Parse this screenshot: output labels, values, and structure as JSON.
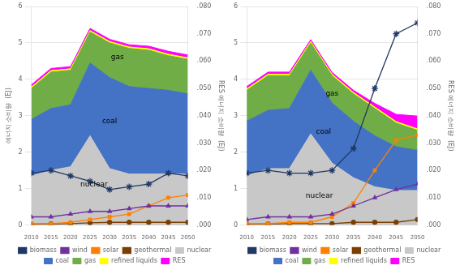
{
  "chart_data": [
    {
      "type": "area",
      "stacked": true,
      "x": [
        2010,
        2015,
        2020,
        2025,
        2030,
        2035,
        2040,
        2045,
        2050
      ],
      "xlim": [
        2010,
        2050
      ],
      "xticks": [
        2010,
        2015,
        2020,
        2025,
        2030,
        2035,
        2040,
        2045,
        2050
      ],
      "ylim": [
        0,
        6
      ],
      "yticks": [
        0,
        1,
        2,
        3,
        4,
        5,
        6
      ],
      "y2lim": [
        0,
        0.08
      ],
      "y2ticks": [
        {
          "value": 0,
          "label": ".000"
        },
        {
          "value": 0.01,
          "label": ".010"
        },
        {
          "value": 0.02,
          "label": ".020"
        },
        {
          "value": 0.03,
          "label": ".030"
        },
        {
          "value": 0.04,
          "label": ".040"
        },
        {
          "value": 0.05,
          "label": ".050"
        },
        {
          "value": 0.06,
          "label": ".060"
        },
        {
          "value": 0.07,
          "label": ".070"
        },
        {
          "value": 0.08,
          "label": ".080"
        }
      ],
      "ylabel": "에너지 소비량  (EJ)",
      "y2label": "RES 에너지 소비량  (EJ)",
      "grid": "y",
      "legend": "bottom",
      "series": [
        {
          "name": "nuclear",
          "type": "area",
          "color": "#c8c8c8",
          "values": [
            1.35,
            1.5,
            1.6,
            2.45,
            1.55,
            1.4,
            1.4,
            1.4,
            1.4
          ]
        },
        {
          "name": "coal",
          "type": "area",
          "color": "#4472c4",
          "values": [
            1.55,
            1.7,
            1.7,
            2.0,
            2.5,
            2.4,
            2.35,
            2.3,
            2.2
          ]
        },
        {
          "name": "gas",
          "type": "area",
          "color": "#70ad47",
          "values": [
            0.85,
            1.0,
            0.95,
            0.85,
            0.95,
            1.05,
            1.05,
            0.95,
            0.95
          ]
        },
        {
          "name": "refined liquids",
          "type": "area",
          "color": "#ffff00",
          "values": [
            0.04,
            0.04,
            0.04,
            0.04,
            0.04,
            0.04,
            0.04,
            0.04,
            0.04
          ]
        },
        {
          "name": "RES",
          "type": "area",
          "color": "#ff00ff",
          "values": [
            0.06,
            0.06,
            0.06,
            0.06,
            0.06,
            0.06,
            0.07,
            0.08,
            0.08
          ]
        },
        {
          "name": "biomass",
          "type": "line",
          "axis": "y2",
          "marker": "star",
          "color": "#203864",
          "values": [
            0.019,
            0.02,
            0.018,
            0.016,
            0.013,
            0.014,
            0.015,
            0.019,
            0.018
          ]
        },
        {
          "name": "wind",
          "type": "line",
          "axis": "y2",
          "marker": "triangle",
          "color": "#7030a0",
          "values": [
            0.003,
            0.003,
            0.004,
            0.005,
            0.005,
            0.006,
            0.007,
            0.007,
            0.007
          ]
        },
        {
          "name": "solar",
          "type": "line",
          "axis": "y2",
          "marker": "square",
          "color": "#ff8000",
          "values": [
            0.0005,
            0.0005,
            0.001,
            0.002,
            0.003,
            0.004,
            0.007,
            0.01,
            0.011
          ]
        },
        {
          "name": "geothermal",
          "type": "line",
          "axis": "y2",
          "marker": "circle",
          "color": "#7b3f00",
          "values": [
            0.0003,
            0.0004,
            0.0005,
            0.0008,
            0.001,
            0.001,
            0.001,
            0.001,
            0.001
          ]
        }
      ],
      "annotations": [
        {
          "text": "gas",
          "x": 2032,
          "y": 4.55
        },
        {
          "text": "coal",
          "x": 2030,
          "y": 2.8
        },
        {
          "text": "nuclear",
          "x": 2026,
          "y": 1.05
        }
      ]
    },
    {
      "type": "area",
      "stacked": true,
      "x": [
        2010,
        2015,
        2020,
        2025,
        2030,
        2035,
        2040,
        2045,
        2050
      ],
      "xlim": [
        2010,
        2050
      ],
      "xticks": [
        2010,
        2015,
        2020,
        2025,
        2030,
        2035,
        2040,
        2045,
        2050
      ],
      "ylim": [
        0,
        6
      ],
      "yticks": [
        0,
        1,
        2,
        3,
        4,
        5,
        6
      ],
      "y2lim": [
        0,
        0.08
      ],
      "y2ticks": [
        {
          "value": 0,
          "label": ".000"
        },
        {
          "value": 0.01,
          "label": ".010"
        },
        {
          "value": 0.02,
          "label": ".020"
        },
        {
          "value": 0.03,
          "label": ".030"
        },
        {
          "value": 0.04,
          "label": ".040"
        },
        {
          "value": 0.05,
          "label": ".050"
        },
        {
          "value": 0.06,
          "label": ".060"
        },
        {
          "value": 0.07,
          "label": ".070"
        },
        {
          "value": 0.08,
          "label": ".080"
        }
      ],
      "y2label": "RES 에너지 소비량  (EJ)",
      "grid": "y",
      "legend": "bottom",
      "series": [
        {
          "name": "nuclear",
          "type": "area",
          "color": "#c8c8c8",
          "values": [
            1.35,
            1.55,
            1.55,
            2.5,
            1.7,
            1.3,
            1.05,
            0.95,
            0.95
          ]
        },
        {
          "name": "coal",
          "type": "area",
          "color": "#4472c4",
          "values": [
            1.5,
            1.6,
            1.65,
            1.75,
            1.65,
            1.55,
            1.4,
            1.2,
            1.1
          ]
        },
        {
          "name": "gas",
          "type": "area",
          "color": "#70ad47",
          "values": [
            0.85,
            0.95,
            0.9,
            0.75,
            0.75,
            0.75,
            0.75,
            0.65,
            0.55
          ]
        },
        {
          "name": "refined liquids",
          "type": "area",
          "color": "#ffff00",
          "values": [
            0.04,
            0.04,
            0.04,
            0.04,
            0.04,
            0.04,
            0.04,
            0.04,
            0.04
          ]
        },
        {
          "name": "RES",
          "type": "area",
          "color": "#ff00ff",
          "values": [
            0.06,
            0.06,
            0.06,
            0.05,
            0.05,
            0.06,
            0.1,
            0.2,
            0.35
          ]
        },
        {
          "name": "biomass",
          "type": "line",
          "axis": "y2",
          "marker": "star",
          "color": "#203864",
          "values": [
            0.019,
            0.02,
            0.019,
            0.019,
            0.02,
            0.028,
            0.05,
            0.07,
            0.074
          ]
        },
        {
          "name": "wind",
          "type": "line",
          "axis": "y2",
          "marker": "triangle",
          "color": "#7030a0",
          "values": [
            0.002,
            0.003,
            0.003,
            0.003,
            0.004,
            0.007,
            0.01,
            0.013,
            0.015
          ]
        },
        {
          "name": "solar",
          "type": "line",
          "axis": "y2",
          "marker": "square",
          "color": "#ff8000",
          "values": [
            0.0005,
            0.0005,
            0.001,
            0.001,
            0.003,
            0.008,
            0.02,
            0.031,
            0.033
          ]
        },
        {
          "name": "geothermal",
          "type": "line",
          "axis": "y2",
          "marker": "circle",
          "color": "#7b3f00",
          "values": [
            0.0003,
            0.0004,
            0.0005,
            0.0005,
            0.0005,
            0.001,
            0.001,
            0.001,
            0.002
          ]
        }
      ],
      "annotations": [
        {
          "text": "gas",
          "x": 2030,
          "y": 3.55
        },
        {
          "text": "coal",
          "x": 2028,
          "y": 2.5
        },
        {
          "text": "nuclear",
          "x": 2027,
          "y": 0.75
        }
      ]
    }
  ]
}
